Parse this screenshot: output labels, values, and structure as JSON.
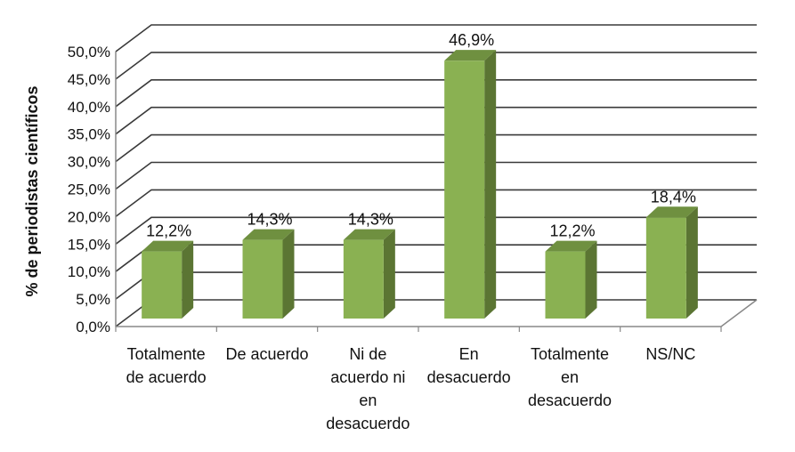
{
  "chart_data": {
    "type": "bar",
    "title": "",
    "xlabel": "",
    "ylabel": "% de periodistas científicos",
    "ylim": [
      0,
      50
    ],
    "ytick_step": 5,
    "ytick_labels": [
      "0,0%",
      "5,0%",
      "10,0%",
      "15,0%",
      "20,0%",
      "25,0%",
      "30,0%",
      "35,0%",
      "40,0%",
      "45,0%",
      "50,0%"
    ],
    "grid": true,
    "style": "3d-column",
    "categories": [
      [
        "Totalmente",
        "de acuerdo"
      ],
      [
        "De acuerdo"
      ],
      [
        "Ni de",
        "acuerdo ni",
        "en",
        "desacuerdo"
      ],
      [
        "En",
        "desacuerdo"
      ],
      [
        "Totalmente",
        "en",
        "desacuerdo"
      ],
      [
        "NS/NC"
      ]
    ],
    "values": [
      12.2,
      14.3,
      14.3,
      46.9,
      12.2,
      18.4
    ],
    "data_labels": [
      "12,2%",
      "14,3%",
      "14,3%",
      "46,9%",
      "12,2%",
      "18,4%"
    ],
    "colors": {
      "front": "#8AB152",
      "side": "#5B7533",
      "top": "#6F9040",
      "grid": "#3A3A3A",
      "axis": "#888888"
    }
  }
}
